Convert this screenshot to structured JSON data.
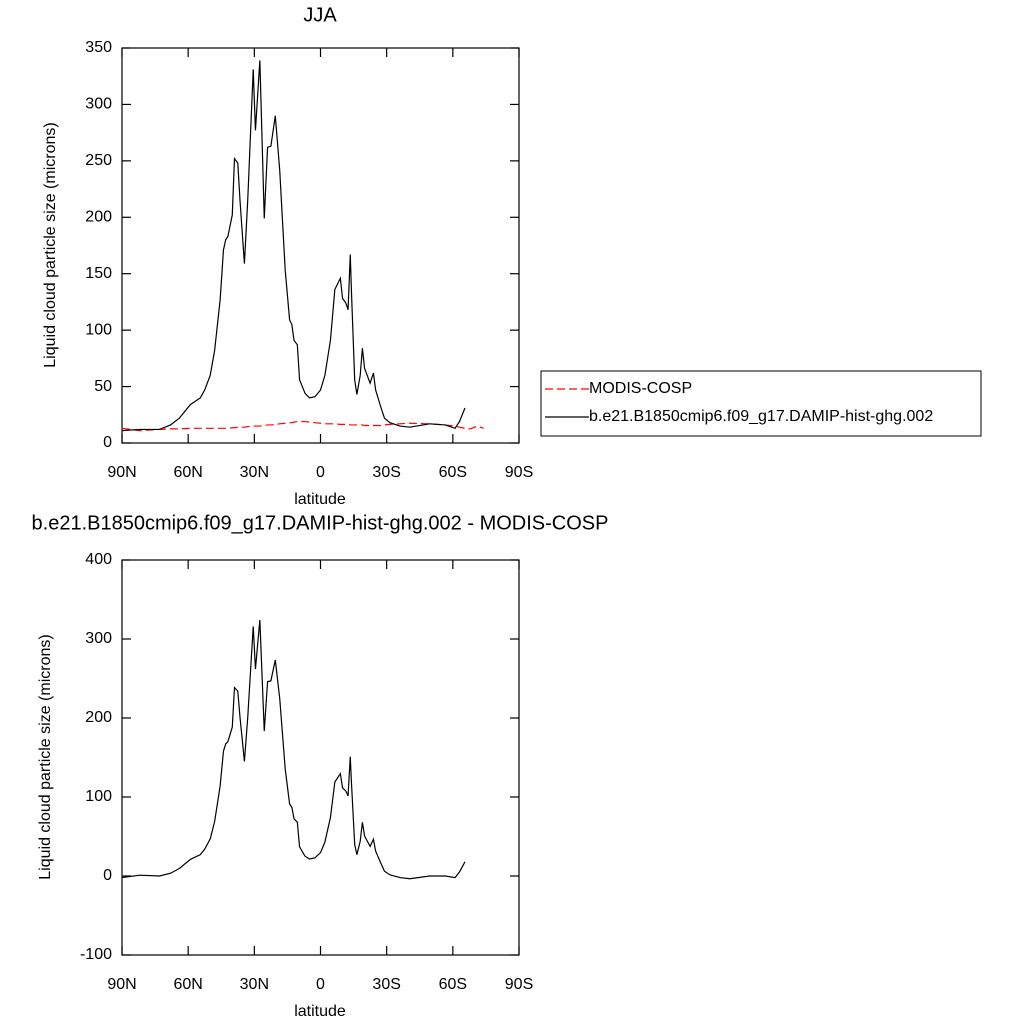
{
  "chart_data": [
    {
      "type": "line",
      "title": "JJA",
      "xlabel": "latitude",
      "ylabel": "Liquid cloud particle size (microns)",
      "x": [
        90,
        82,
        73,
        68,
        64,
        59,
        54.5,
        52.5,
        50,
        48,
        45.5,
        44,
        43,
        42,
        40,
        39,
        37.5,
        36.5,
        34.5,
        33,
        30.5,
        29.5,
        27.5,
        25.5,
        24,
        22.5,
        20.5,
        18.5,
        16,
        14,
        13,
        12,
        10.5,
        9.5,
        7,
        5,
        2.5,
        0,
        -2,
        -4.5,
        -6.5,
        -9,
        -10,
        -11.5,
        -12.5,
        -13.5,
        -14,
        -15.5,
        -16.5,
        -18,
        -19,
        -20,
        -22.5,
        -24,
        -25,
        -27,
        -29,
        -31.5,
        -36,
        -40.5,
        -49.5,
        -56.5,
        -61,
        -63,
        -65.5,
        -68,
        -71,
        -74
      ],
      "series": [
        {
          "name": "MODIS-COSP",
          "color": "#ff0000",
          "dash": true,
          "values": [
            13,
            11,
            12,
            12.5,
            12.5,
            13,
            13,
            13,
            13,
            13,
            13,
            13,
            13,
            13,
            13.5,
            13.5,
            14,
            14,
            14,
            14.5,
            15,
            15,
            15,
            15.5,
            16,
            16,
            16.5,
            17,
            17.5,
            18,
            18,
            18.5,
            19,
            19,
            19,
            18.5,
            18,
            17.5,
            17,
            17,
            17,
            16.5,
            16.5,
            16.5,
            16.5,
            16,
            16,
            16,
            16,
            16,
            16,
            15.5,
            15.5,
            15.5,
            15.5,
            15.5,
            16,
            16.5,
            17,
            17.5,
            17,
            16,
            15,
            14,
            13,
            12.5,
            15,
            13
          ]
        },
        {
          "name": "b.e21.B1850cmip6.f09_g17.DAMIP-hist-ghg.002",
          "color": "#000000",
          "dash": false,
          "values": [
            11,
            12,
            12,
            16,
            22,
            34,
            40,
            47,
            60,
            82,
            127,
            171,
            180,
            183,
            202,
            252,
            248,
            215,
            159,
            215,
            331,
            277,
            339,
            199,
            262,
            263,
            290,
            242,
            153,
            109,
            105,
            91,
            87,
            56,
            44,
            40,
            41,
            47,
            60,
            91,
            136,
            146,
            128,
            124,
            118,
            167,
            136,
            56,
            43,
            60,
            84,
            66,
            53,
            62,
            47,
            34,
            22,
            18,
            15,
            14,
            17,
            16,
            13,
            19,
            31,
            null,
            null,
            null
          ]
        }
      ],
      "xlim": [
        90,
        -90
      ],
      "xticks": [
        {
          "value": 90,
          "label": "90N"
        },
        {
          "value": 60,
          "label": "60N"
        },
        {
          "value": 30,
          "label": "30N"
        },
        0,
        {
          "value": -30,
          "label": "30S"
        },
        {
          "value": -60,
          "label": "60S"
        },
        {
          "value": -90,
          "label": "90S"
        }
      ],
      "ylim": [
        0,
        350
      ],
      "yticks": [
        0,
        50,
        100,
        150,
        200,
        250,
        300,
        350
      ],
      "legend": "right"
    },
    {
      "type": "line",
      "title": "b.e21.B1850cmip6.f09_g17.DAMIP-hist-ghg.002 - MODIS-COSP",
      "xlabel": "latitude",
      "ylabel": "Liquid cloud particle size (microns)",
      "x": [
        90,
        82,
        73,
        68,
        64,
        59,
        54.5,
        52.5,
        50,
        48,
        45.5,
        44,
        43,
        42,
        40,
        39,
        37.5,
        36.5,
        34.5,
        33,
        30.5,
        29.5,
        27.5,
        25.5,
        24,
        22.5,
        20.5,
        18.5,
        16,
        14,
        13,
        12,
        10.5,
        9.5,
        7,
        5,
        2.5,
        0,
        -2,
        -4.5,
        -6.5,
        -9,
        -10,
        -11.5,
        -12.5,
        -13.5,
        -14,
        -15.5,
        -16.5,
        -18,
        -19,
        -20,
        -22.5,
        -24,
        -25,
        -27,
        -29,
        -31.5,
        -36,
        -40.5,
        -49.5,
        -56.5,
        -61,
        -63,
        -65.5,
        -68,
        -71,
        -74
      ],
      "color": "#000000",
      "values": [
        -2,
        1,
        0,
        3.5,
        9.5,
        21,
        27,
        34,
        47,
        69,
        114,
        158,
        167,
        170,
        188.5,
        238.5,
        234,
        201,
        145,
        200.5,
        316,
        262,
        324,
        183.5,
        246,
        247,
        273.5,
        225,
        135.5,
        91,
        87,
        72.5,
        68,
        37,
        25,
        21.5,
        23,
        29.5,
        43,
        74,
        119,
        129.5,
        111.5,
        107.5,
        101.5,
        151,
        120,
        40,
        27,
        44,
        68,
        50.5,
        37.5,
        46.5,
        31.5,
        18.5,
        6,
        1.5,
        -2,
        -3.5,
        0,
        0,
        -2,
        5,
        18,
        null,
        null,
        null
      ],
      "xlim": [
        90,
        -90
      ],
      "xticks": [
        {
          "value": 90,
          "label": "90N"
        },
        {
          "value": 60,
          "label": "60N"
        },
        {
          "value": 30,
          "label": "30N"
        },
        0,
        {
          "value": -30,
          "label": "30S"
        },
        {
          "value": -60,
          "label": "60S"
        },
        {
          "value": -90,
          "label": "90S"
        }
      ],
      "ylim": [
        -100,
        400
      ],
      "yticks": [
        -100,
        0,
        100,
        200,
        300,
        400
      ]
    }
  ]
}
